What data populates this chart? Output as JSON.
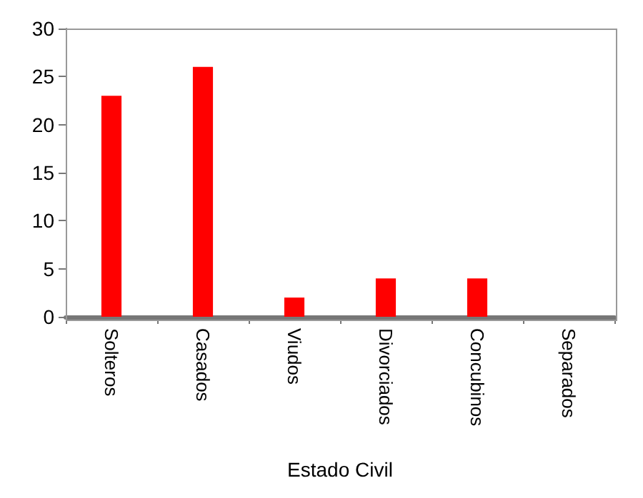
{
  "chart_data": {
    "type": "bar",
    "xlabel": "Estado Civil",
    "categories": [
      "Solteros",
      "Casados",
      "Viudos",
      "Divorciados",
      "Concubinos",
      "Separados"
    ],
    "values": [
      23,
      26,
      2,
      4,
      4,
      0
    ],
    "color": "#ff0000",
    "ylim": [
      0,
      30
    ],
    "yticks": [
      0,
      5,
      10,
      15,
      20,
      25,
      30
    ],
    "grid": false
  }
}
